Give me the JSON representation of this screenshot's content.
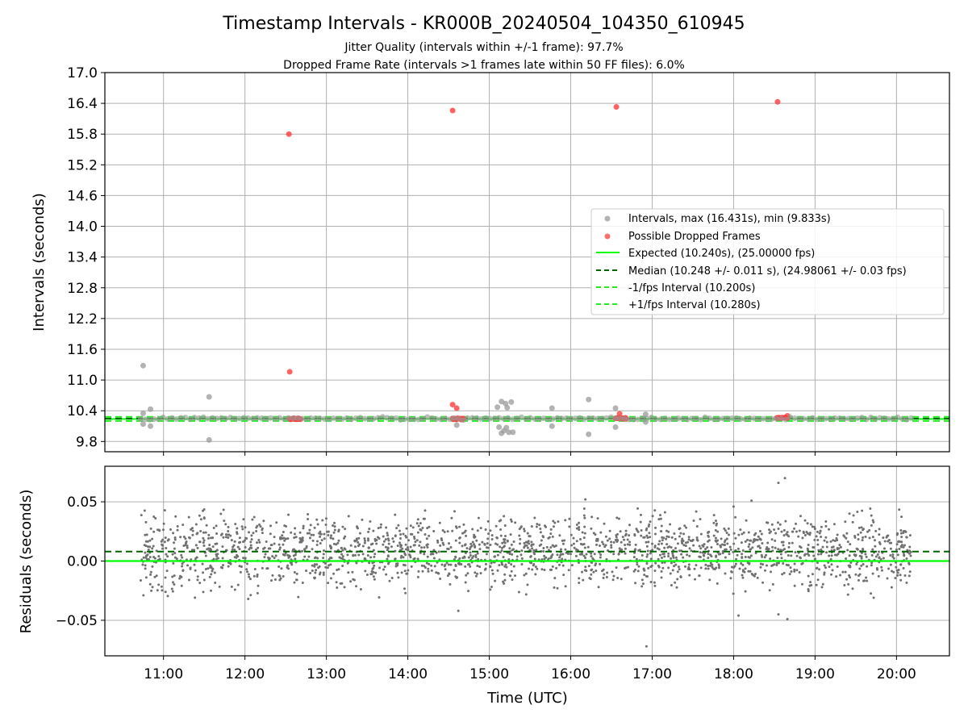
{
  "chart_data": {
    "type": "scatter",
    "title": "Timestamp Intervals - KR000B_20240504_104350_610945",
    "subtitle_lines": [
      "Jitter Quality (intervals within +/-1 frame): 97.7%",
      "Dropped Frame Rate (intervals >1 frames late within 50 FF files): 6.0%"
    ],
    "xlabel": "Time (UTC)",
    "x_tick_labels": [
      "11:00",
      "12:00",
      "13:00",
      "14:00",
      "15:00",
      "16:00",
      "17:00",
      "18:00",
      "19:00",
      "20:00"
    ],
    "x_tick_hours": [
      11,
      12,
      13,
      14,
      15,
      16,
      17,
      18,
      19,
      20
    ],
    "xlim_hours": [
      10.28,
      20.65
    ],
    "grid": true,
    "colors": {
      "intervals": "#999999",
      "dropped": "#ff3b3b",
      "expected": "#00ff00",
      "median": "#006400",
      "bounds": "#22ee22",
      "residuals": "#707070",
      "grid": "#b0b0b0"
    },
    "top": {
      "ylabel": "Intervals (seconds)",
      "ylim": [
        9.6,
        17.0
      ],
      "y_ticks": [
        9.8,
        10.4,
        11.0,
        11.6,
        12.2,
        12.8,
        13.4,
        14.0,
        14.6,
        15.2,
        15.8,
        16.4,
        17.0
      ],
      "y_tick_labels": [
        "9.8",
        "10.4",
        "11.0",
        "11.6",
        "12.2",
        "12.8",
        "13.4",
        "14.0",
        "14.6",
        "15.2",
        "15.8",
        "16.4",
        "17.0"
      ],
      "expected": 10.24,
      "median": 10.248,
      "lower": 10.2,
      "upper": 10.28,
      "legend": {
        "placement": "center-right",
        "entries": [
          "Intervals, max (16.431s), min (9.833s)",
          "Possible Dropped Frames",
          "Expected (10.240s), (25.00000 fps)",
          "Median (10.248 +/- 0.011 s), (24.98061 +/- 0.03 fps)",
          "-1/fps Interval (10.200s)",
          "+1/fps Interval (10.280s)"
        ]
      },
      "intervals_outliers": [
        {
          "t": 10.75,
          "v": 11.28
        },
        {
          "t": 10.75,
          "v": 10.35
        },
        {
          "t": 10.75,
          "v": 10.14
        },
        {
          "t": 10.84,
          "v": 10.43
        },
        {
          "t": 10.84,
          "v": 10.1
        },
        {
          "t": 11.56,
          "v": 10.67
        },
        {
          "t": 11.56,
          "v": 9.83
        },
        {
          "t": 14.6,
          "v": 10.12
        },
        {
          "t": 15.1,
          "v": 10.47
        },
        {
          "t": 15.12,
          "v": 10.08
        },
        {
          "t": 15.15,
          "v": 10.58
        },
        {
          "t": 15.15,
          "v": 9.96
        },
        {
          "t": 15.18,
          "v": 10.01
        },
        {
          "t": 15.2,
          "v": 10.54
        },
        {
          "t": 15.21,
          "v": 10.07
        },
        {
          "t": 15.22,
          "v": 10.46
        },
        {
          "t": 15.24,
          "v": 9.98
        },
        {
          "t": 15.27,
          "v": 10.57
        },
        {
          "t": 15.29,
          "v": 9.98
        },
        {
          "t": 15.77,
          "v": 10.45
        },
        {
          "t": 15.77,
          "v": 10.1
        },
        {
          "t": 16.22,
          "v": 10.62
        },
        {
          "t": 16.22,
          "v": 9.94
        },
        {
          "t": 16.55,
          "v": 10.45
        },
        {
          "t": 16.55,
          "v": 10.08
        },
        {
          "t": 16.92,
          "v": 10.33
        },
        {
          "t": 16.92,
          "v": 10.18
        }
      ],
      "dropped_frames": [
        {
          "t": 12.54,
          "v": 15.8
        },
        {
          "t": 12.55,
          "v": 11.16
        },
        {
          "t": 14.55,
          "v": 16.26
        },
        {
          "t": 14.55,
          "v": 10.52
        },
        {
          "t": 14.6,
          "v": 10.45
        },
        {
          "t": 16.56,
          "v": 16.33
        },
        {
          "t": 16.6,
          "v": 10.34
        },
        {
          "t": 18.54,
          "v": 16.43
        },
        {
          "t": 18.66,
          "v": 10.3
        }
      ],
      "dropped_clusters": [
        {
          "t_start": 12.55,
          "t_end": 12.69,
          "v": 10.24
        },
        {
          "t_start": 14.55,
          "t_end": 14.69,
          "v": 10.24
        },
        {
          "t_start": 16.55,
          "t_end": 16.69,
          "v": 10.25
        },
        {
          "t_start": 18.53,
          "t_end": 18.67,
          "v": 10.26
        }
      ]
    },
    "bottom": {
      "ylabel": "Residuals (seconds)",
      "ylim": [
        -0.08,
        0.08
      ],
      "y_ticks": [
        0.05,
        0.0,
        -0.05
      ],
      "y_tick_labels": [
        "0.05",
        "0.00",
        "−0.05"
      ],
      "zero_line": 0.0,
      "median_offset": 0.008,
      "residual_range": {
        "t_start": 10.72,
        "t_end": 20.18,
        "count": 2100
      },
      "residual_outliers": [
        {
          "t": 16.93,
          "v": -0.072
        },
        {
          "t": 18.55,
          "v": 0.066
        },
        {
          "t": 18.63,
          "v": 0.07
        },
        {
          "t": 18.55,
          "v": -0.045
        },
        {
          "t": 18.66,
          "v": -0.049
        },
        {
          "t": 18.06,
          "v": -0.046
        },
        {
          "t": 14.62,
          "v": -0.042
        },
        {
          "t": 16.18,
          "v": 0.052
        },
        {
          "t": 18.22,
          "v": 0.051
        },
        {
          "t": 18.0,
          "v": 0.046
        },
        {
          "t": 12.04,
          "v": -0.032
        },
        {
          "t": 19.72,
          "v": -0.031
        }
      ]
    }
  }
}
